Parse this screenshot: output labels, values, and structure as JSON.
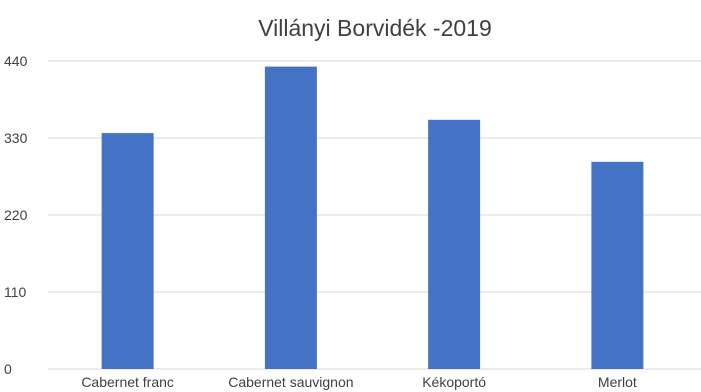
{
  "chart_data": {
    "type": "bar",
    "title": "Villányi Borvidék -2019",
    "xlabel": "",
    "ylabel": "",
    "categories": [
      "Cabernet franc",
      "Cabernet sauvignon",
      "Kékoportó",
      "Merlot"
    ],
    "values": [
      337,
      432,
      356,
      296
    ],
    "ylim": [
      0,
      440
    ],
    "yticks": [
      0,
      110,
      220,
      330,
      440
    ],
    "grid": true,
    "legend": "none",
    "bar_color": "#4472c4"
  }
}
